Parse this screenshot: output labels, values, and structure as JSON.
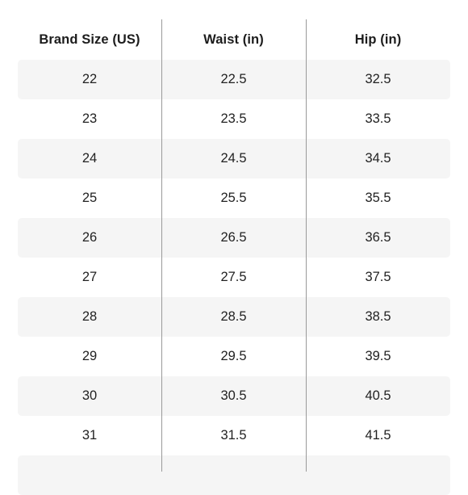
{
  "table": {
    "headers": [
      "Brand Size (US)",
      "Waist (in)",
      "Hip (in)"
    ],
    "rows": [
      [
        "22",
        "22.5",
        "32.5"
      ],
      [
        "23",
        "23.5",
        "33.5"
      ],
      [
        "24",
        "24.5",
        "34.5"
      ],
      [
        "25",
        "25.5",
        "35.5"
      ],
      [
        "26",
        "26.5",
        "36.5"
      ],
      [
        "27",
        "27.5",
        "37.5"
      ],
      [
        "28",
        "28.5",
        "38.5"
      ],
      [
        "29",
        "29.5",
        "39.5"
      ],
      [
        "30",
        "30.5",
        "40.5"
      ],
      [
        "31",
        "31.5",
        "41.5"
      ],
      [
        "",
        "",
        ""
      ]
    ],
    "colors": {
      "row_shade": "#f5f5f5",
      "divider": "#9a9a9a",
      "text": "#222222"
    }
  }
}
